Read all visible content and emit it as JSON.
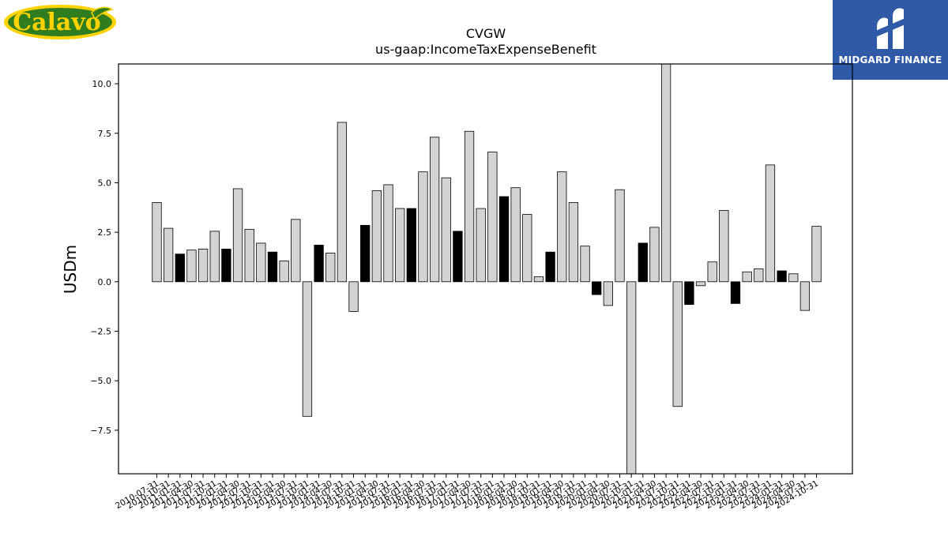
{
  "logos": {
    "left": {
      "text": "Calavo",
      "colors": {
        "outer": "#ffd200",
        "inner": "#2f7d1f",
        "text": "#ffd200"
      }
    },
    "right": {
      "text": "MIDGARD FINANCE",
      "background": "#2f5aa8"
    }
  },
  "chart_data": {
    "type": "bar",
    "title": "CVGW",
    "subtitle": "us-gaap:IncomeTaxExpenseBenefit",
    "xlabel": "",
    "ylabel": "USDm",
    "ylim": [
      -9.7,
      11.0
    ],
    "yticks": [
      -7.5,
      -5.0,
      -2.5,
      0.0,
      2.5,
      5.0,
      7.5,
      10.0
    ],
    "ytick_labels": [
      "−7.5",
      "−5.0",
      "−2.5",
      "0.0",
      "2.5",
      "5.0",
      "7.5",
      "10.0"
    ],
    "grid": false,
    "colors": {
      "fiscal_year_end": "#000000",
      "quarter": "#d3d3d3",
      "edge": "#000000"
    },
    "categories": [
      "2010-07-31",
      "2010-10-31",
      "2011-01-31",
      "2011-04-30",
      "2011-07-31",
      "2011-10-31",
      "2012-01-31",
      "2012-04-30",
      "2012-07-31",
      "2012-10-31",
      "2013-01-31",
      "2013-04-30",
      "2013-07-31",
      "2013-10-31",
      "2014-01-31",
      "2014-04-30",
      "2014-07-31",
      "2014-10-31",
      "2015-01-31",
      "2015-04-30",
      "2015-07-31",
      "2015-10-31",
      "2016-01-31",
      "2016-04-30",
      "2016-07-31",
      "2016-10-31",
      "2017-01-31",
      "2017-04-30",
      "2017-07-31",
      "2017-10-31",
      "2018-01-31",
      "2018-04-30",
      "2018-07-31",
      "2018-10-31",
      "2019-01-31",
      "2019-04-30",
      "2019-07-31",
      "2019-10-31",
      "2020-01-31",
      "2020-04-30",
      "2020-07-31",
      "2020-10-31",
      "2021-01-31",
      "2021-04-30",
      "2021-07-31",
      "2021-10-31",
      "2022-01-31",
      "2022-04-30",
      "2022-07-31",
      "2022-10-31",
      "2023-01-31",
      "2023-04-30",
      "2023-07-31",
      "2023-10-31",
      "2024-01-31",
      "2024-04-30",
      "2024-07-31",
      "2024-10-31"
    ],
    "values": [
      4.0,
      2.7,
      1.4,
      1.6,
      1.65,
      2.55,
      1.65,
      4.7,
      2.65,
      1.95,
      1.5,
      1.05,
      3.15,
      -6.8,
      1.85,
      1.45,
      8.05,
      -1.5,
      2.85,
      4.6,
      4.9,
      3.7,
      3.7,
      5.55,
      7.3,
      5.25,
      2.55,
      7.6,
      3.7,
      6.55,
      4.3,
      4.75,
      3.4,
      0.25,
      1.5,
      5.55,
      4.0,
      1.8,
      -0.65,
      -1.2,
      4.65,
      -9.7,
      1.95,
      2.75,
      11.0,
      -6.3,
      -1.15,
      -0.2,
      1.0,
      3.6,
      -1.1,
      0.5,
      0.65,
      5.9,
      0.55,
      0.4,
      -1.45,
      2.8
    ],
    "highlight": [
      false,
      false,
      true,
      false,
      false,
      false,
      true,
      false,
      false,
      false,
      true,
      false,
      false,
      false,
      true,
      false,
      false,
      false,
      true,
      false,
      false,
      false,
      true,
      false,
      false,
      false,
      true,
      false,
      false,
      false,
      true,
      false,
      false,
      false,
      true,
      false,
      false,
      false,
      true,
      false,
      false,
      false,
      true,
      false,
      false,
      false,
      true,
      false,
      false,
      false,
      true,
      false,
      false,
      false,
      true,
      false,
      false,
      false
    ]
  }
}
